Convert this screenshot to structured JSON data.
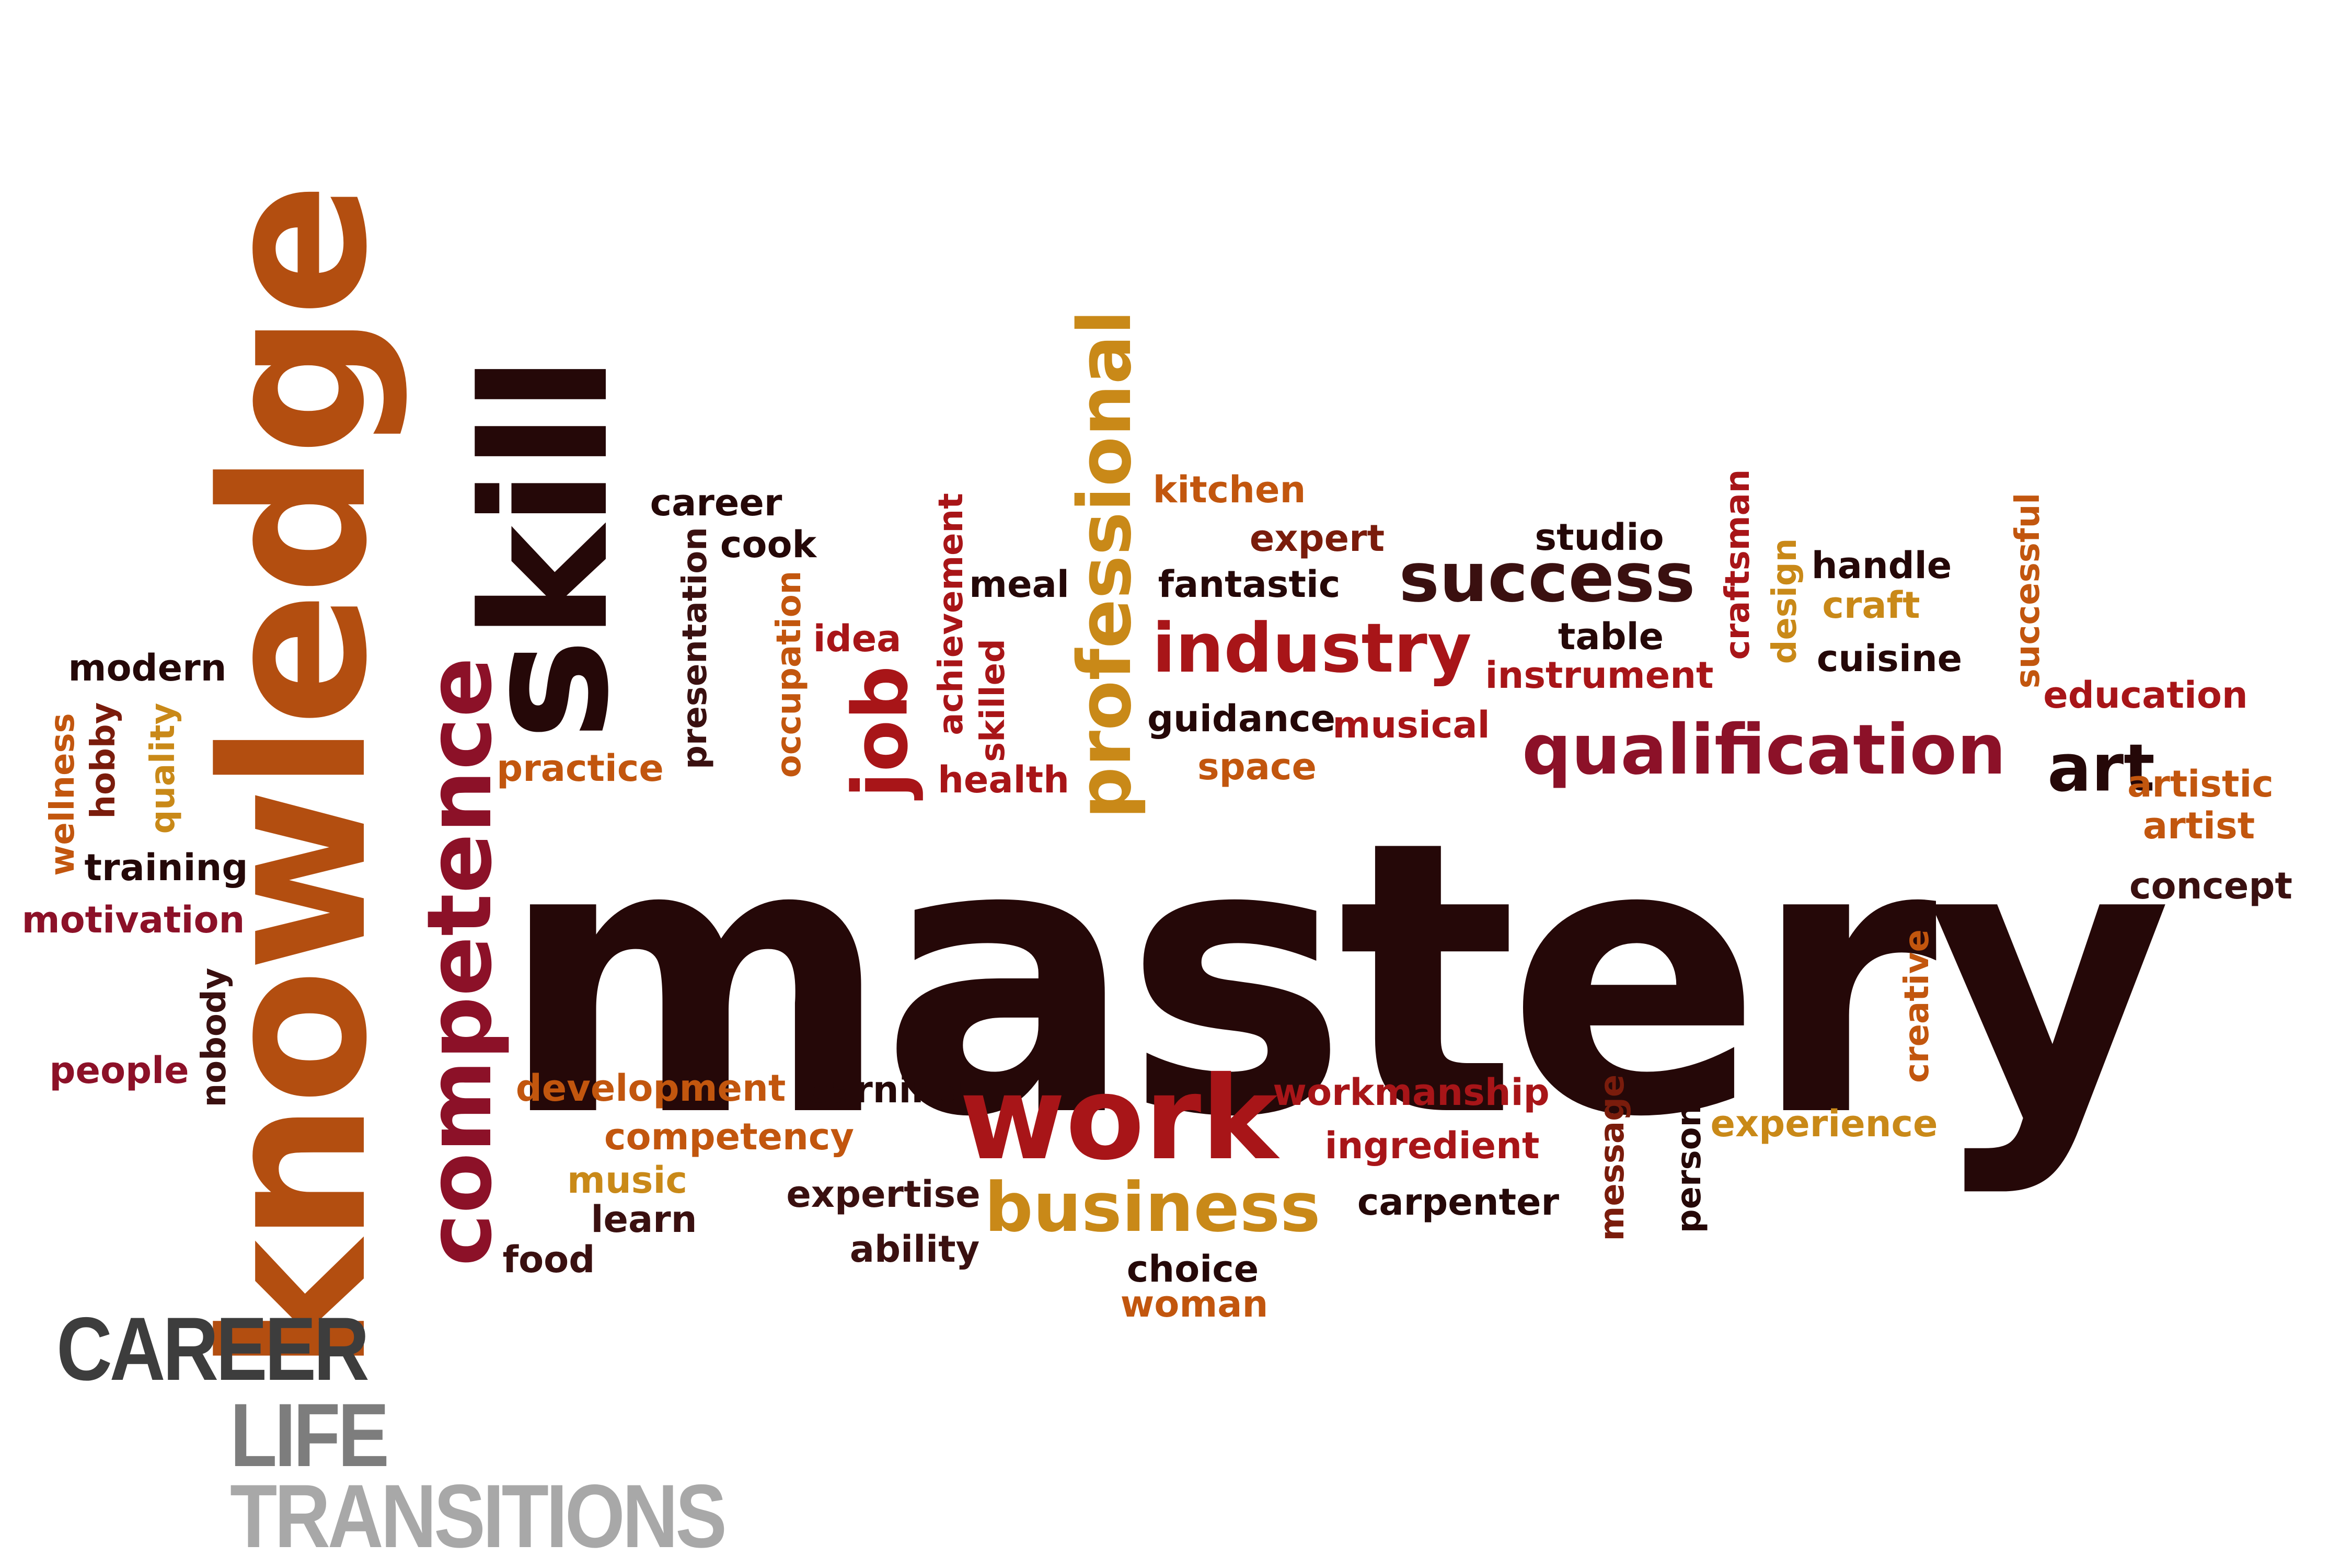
{
  "cloud": {
    "mastery": "mastery",
    "knowledge": "knowledge",
    "skill": "skill",
    "competence": "competence",
    "professional": "professional",
    "work": "work",
    "business": "business",
    "qualification": "qualification",
    "success": "success",
    "industry": "industry",
    "art": "art",
    "job": "job",
    "career": "career",
    "cook": "cook",
    "meal": "meal",
    "kitchen": "kitchen",
    "expert": "expert",
    "fantastic": "fantastic",
    "studio": "studio",
    "table": "table",
    "instrument": "instrument",
    "handle": "handle",
    "craft": "craft",
    "cuisine": "cuisine",
    "education": "education",
    "artistic": "artistic",
    "artist": "artist",
    "concept": "concept",
    "craftsman": "craftsman",
    "design": "design",
    "successful": "successful",
    "guidance": "guidance",
    "musical": "musical",
    "space": "space",
    "health": "health",
    "idea": "idea",
    "practice": "practice",
    "presentation": "presentation",
    "occupation": "occupation",
    "achievement": "achievement",
    "skilled": "skilled",
    "modern": "modern",
    "wellness": "wellness",
    "hobby": "hobby",
    "quality": "quality",
    "training": "training",
    "motivation": "motivation",
    "nobody": "nobody",
    "people": "people",
    "development": "development",
    "learning": "learning",
    "competency": "competency",
    "music": "music",
    "learn": "learn",
    "food": "food",
    "expertise": "expertise",
    "ability": "ability",
    "choice": "choice",
    "woman": "woman",
    "workmanship": "workmanship",
    "ingredient": "ingredient",
    "carpenter": "carpenter",
    "message": "message",
    "person": "person",
    "experience": "experience",
    "creative": "creative"
  },
  "logo": {
    "line1": "CAREER",
    "line2": "LIFE",
    "line3": "TRANSITIONS"
  },
  "colors": {
    "dark": "#250808",
    "maroon": "#8c1128",
    "red": "#a81518",
    "brown": "#7a1c0c",
    "orange": "#b34e10",
    "burnt": "#c2560e",
    "gold": "#c98918",
    "logo_dark": "#3d3d3d",
    "logo_mid": "#7d7d7d",
    "logo_light": "#a8a8a8"
  }
}
